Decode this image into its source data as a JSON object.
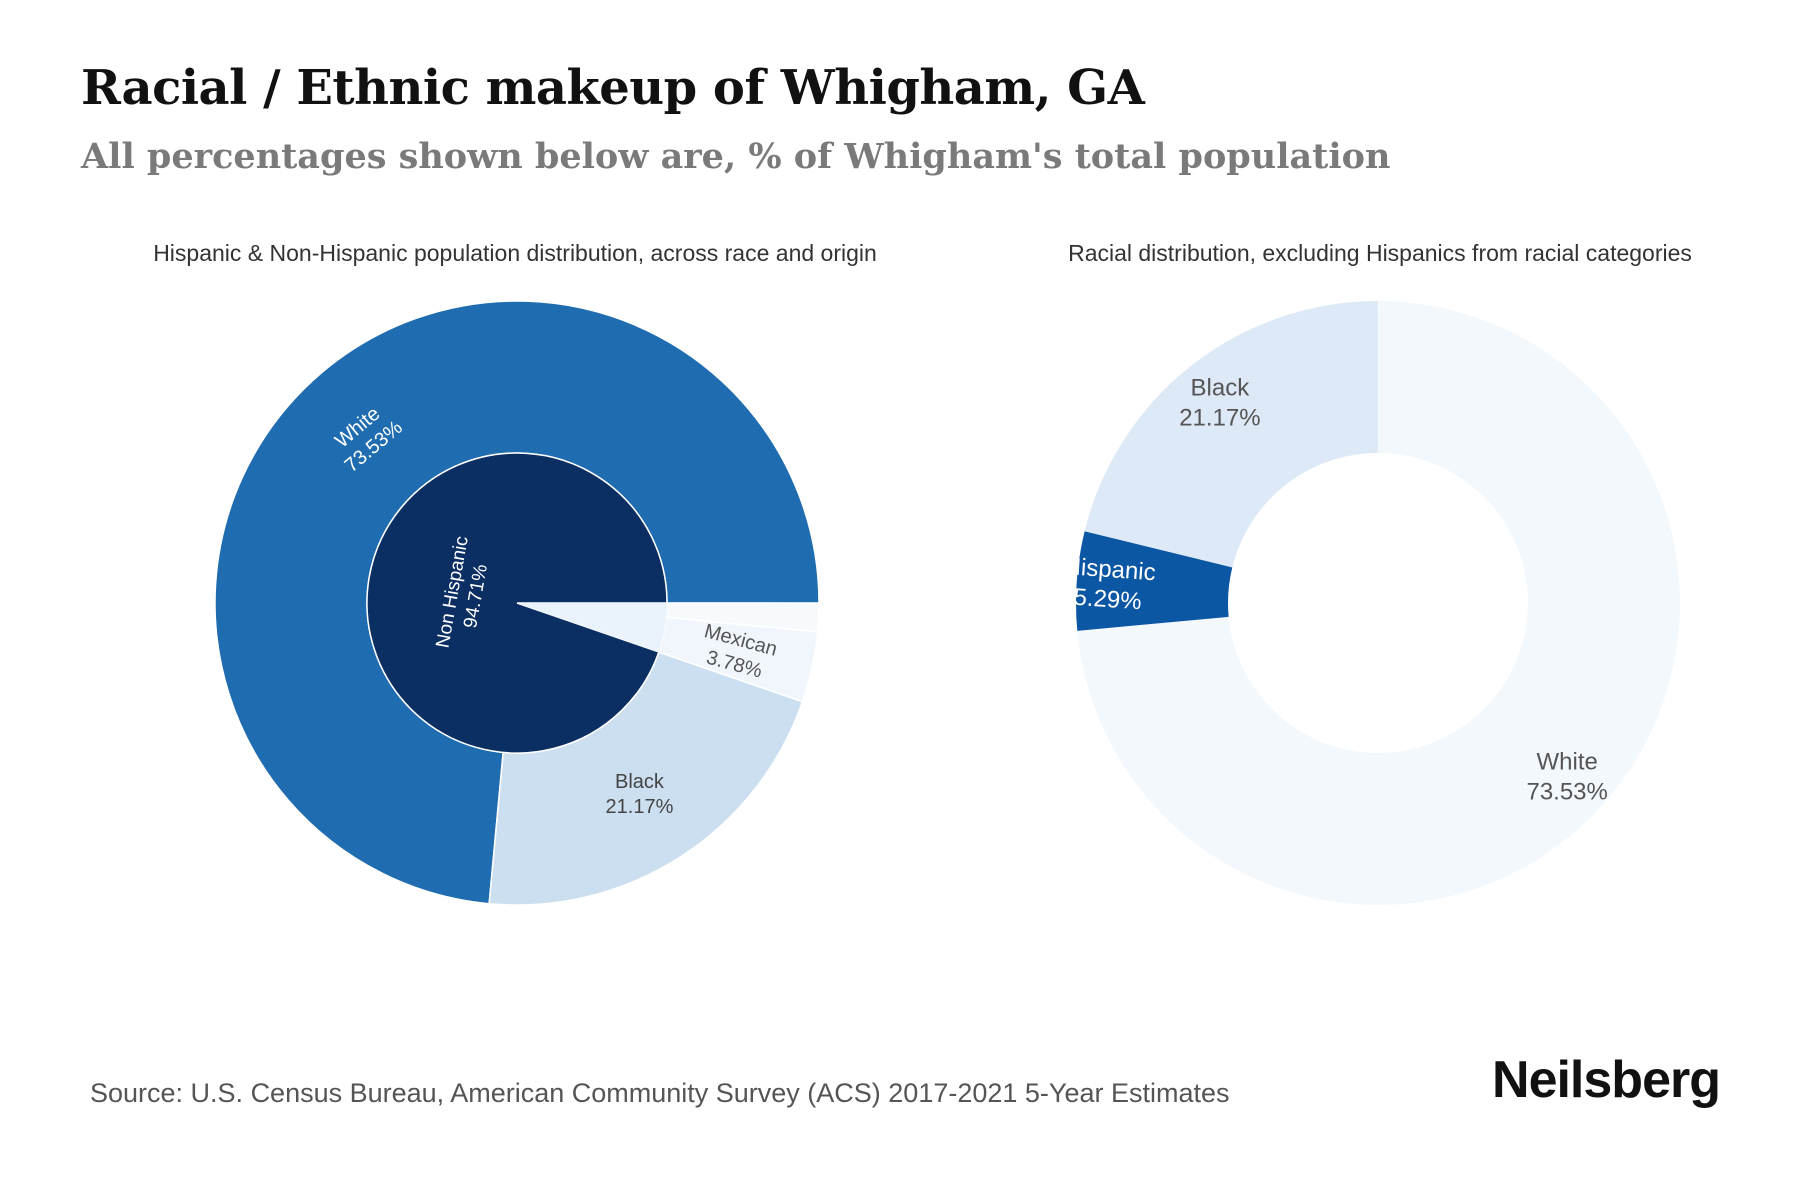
{
  "header": {
    "title": "Racial / Ethnic makeup of Whigham, GA",
    "subtitle": "All percentages shown below are, % of Whigham's total population"
  },
  "footer": {
    "source": "Source: U.S. Census Bureau, American Community Survey (ACS) 2017-2021 5-Year Estimates",
    "brand": "Neilsberg"
  },
  "chart_data": [
    {
      "type": "pie",
      "title": "Hispanic & Non-Hispanic population distribution, across race and origin",
      "inner": [
        {
          "label": "Non Hispanic",
          "value": 94.71,
          "value_label": "94.71%",
          "color": "#0b2e63"
        },
        {
          "label": "",
          "value": 5.29,
          "value_label": "",
          "color": "#eaf2fb"
        }
      ],
      "outer": [
        {
          "label": "White",
          "value": 73.53,
          "value_label": "73.53%",
          "color": "#1f6cb0"
        },
        {
          "label": "Black",
          "value": 21.17,
          "value_label": "21.17%",
          "color": "#ccdff0"
        },
        {
          "label": "Mexican",
          "value": 3.78,
          "value_label": "3.78%",
          "color": "#f1f6fc"
        },
        {
          "label": "",
          "value": 1.51,
          "value_label": "",
          "color": "#f7fafd"
        }
      ]
    },
    {
      "type": "pie",
      "title": "Racial distribution, excluding Hispanics from racial categories",
      "slices": [
        {
          "label": "White",
          "value": 73.53,
          "value_label": "73.53%",
          "color": "#f3f8fd"
        },
        {
          "label": "Hispanic",
          "value": 5.29,
          "value_label": "5.29%",
          "color": "#0b57a4"
        },
        {
          "label": "Black",
          "value": 21.17,
          "value_label": "21.17%",
          "color": "#dde9f6"
        }
      ]
    }
  ]
}
